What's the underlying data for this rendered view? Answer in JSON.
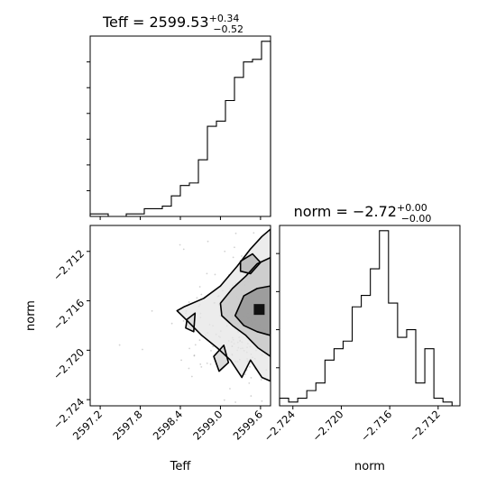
{
  "chart_data": [
    {
      "type": "histogram",
      "panel": "Teff marginal",
      "title_main": "Teff = 2599.53",
      "title_sup": "+0.34",
      "title_sub": "−0.52",
      "x_range": [
        2597.05,
        2599.75
      ],
      "bin_edges": [
        2597.05,
        2597.185,
        2597.32,
        2597.455,
        2597.59,
        2597.725,
        2597.86,
        2597.995,
        2598.13,
        2598.265,
        2598.4,
        2598.535,
        2598.67,
        2598.805,
        2598.94,
        2599.075,
        2599.21,
        2599.345,
        2599.48,
        2599.615,
        2599.75
      ],
      "counts": [
        1,
        1,
        0,
        0,
        1,
        1,
        3,
        3,
        4,
        8,
        12,
        13,
        22,
        35,
        37,
        45,
        54,
        60,
        61,
        68
      ],
      "y_max": 68,
      "x_tick_labels_shown": false,
      "y_tick_labels_shown": false
    },
    {
      "type": "contour",
      "panel": "Teff vs norm",
      "xlabel": "Teff",
      "ylabel": "norm",
      "x_range": [
        2597.05,
        2599.75
      ],
      "y_range": [
        -2.7245,
        -2.7099
      ],
      "x_ticks": [
        "2597.2",
        "2597.8",
        "2598.4",
        "2599.0",
        "2599.6"
      ],
      "y_ticks": [
        "−2.712",
        "−2.716",
        "−2.720",
        "−2.724"
      ],
      "x_tick_values": [
        2597.2,
        2597.8,
        2598.4,
        2599.0,
        2599.6
      ],
      "y_tick_values": [
        -2.712,
        -2.716,
        -2.72,
        -2.724
      ],
      "density_peak": [
        2599.6,
        -2.7174
      ],
      "contours": [
        [
          [
            2598.45,
            -2.7165
          ],
          [
            2598.75,
            -2.7158
          ],
          [
            2599.0,
            -2.7148
          ],
          [
            2599.25,
            -2.7132
          ],
          [
            2599.45,
            -2.7118
          ],
          [
            2599.62,
            -2.7108
          ],
          [
            2599.75,
            -2.7102
          ],
          [
            2599.75,
            -2.7225
          ],
          [
            2599.62,
            -2.7222
          ],
          [
            2599.45,
            -2.7208
          ],
          [
            2599.32,
            -2.7222
          ],
          [
            2599.15,
            -2.7208
          ],
          [
            2598.95,
            -2.7198
          ],
          [
            2598.72,
            -2.7188
          ],
          [
            2598.5,
            -2.7176
          ],
          [
            2598.35,
            -2.7168
          ]
        ],
        [
          [
            2599.0,
            -2.7162
          ],
          [
            2599.18,
            -2.715
          ],
          [
            2599.38,
            -2.714
          ],
          [
            2599.55,
            -2.713
          ],
          [
            2599.75,
            -2.7125
          ],
          [
            2599.75,
            -2.7205
          ],
          [
            2599.56,
            -2.7198
          ],
          [
            2599.38,
            -2.7188
          ],
          [
            2599.18,
            -2.718
          ],
          [
            2599.02,
            -2.7172
          ]
        ],
        [
          [
            2599.22,
            -2.7172
          ],
          [
            2599.35,
            -2.7156
          ],
          [
            2599.55,
            -2.715
          ],
          [
            2599.75,
            -2.7148
          ],
          [
            2599.75,
            -2.7188
          ],
          [
            2599.55,
            -2.7185
          ],
          [
            2599.35,
            -2.718
          ]
        ],
        [
          [
            2599.3,
            -2.7128
          ],
          [
            2599.48,
            -2.7122
          ],
          [
            2599.6,
            -2.7129
          ],
          [
            2599.45,
            -2.7138
          ],
          [
            2599.3,
            -2.7136
          ]
        ],
        [
          [
            2598.9,
            -2.7205
          ],
          [
            2599.05,
            -2.7196
          ],
          [
            2599.12,
            -2.721
          ],
          [
            2598.98,
            -2.7217
          ]
        ],
        [
          [
            2598.5,
            -2.7175
          ],
          [
            2598.62,
            -2.717
          ],
          [
            2598.6,
            -2.7185
          ],
          [
            2598.48,
            -2.7182
          ]
        ]
      ]
    },
    {
      "type": "histogram",
      "panel": "norm marginal",
      "title_main": "norm = −2.72",
      "title_sup": "+0.00",
      "title_sub": "−0.00",
      "xlabel": "norm",
      "x_range": [
        -2.7251,
        -2.7102
      ],
      "x_ticks": [
        "−2.724",
        "−2.720",
        "−2.716",
        "−2.712"
      ],
      "x_tick_values": [
        -2.724,
        -2.72,
        -2.716,
        -2.712
      ],
      "bin_edges": [
        -2.7251,
        -2.72435,
        -2.7236,
        -2.72285,
        -2.7221,
        -2.72135,
        -2.7206,
        -2.71985,
        -2.7191,
        -2.71835,
        -2.7176,
        -2.71685,
        -2.7161,
        -2.71535,
        -2.7146,
        -2.71385,
        -2.7131,
        -2.71235,
        -2.7116,
        -2.71085,
        -2.7102
      ],
      "counts": [
        2,
        1,
        2,
        4,
        6,
        12,
        15,
        17,
        26,
        29,
        36,
        46,
        27,
        18,
        20,
        6,
        15,
        2,
        1,
        0
      ],
      "y_max": 46,
      "y_tick_labels_shown": false
    }
  ]
}
